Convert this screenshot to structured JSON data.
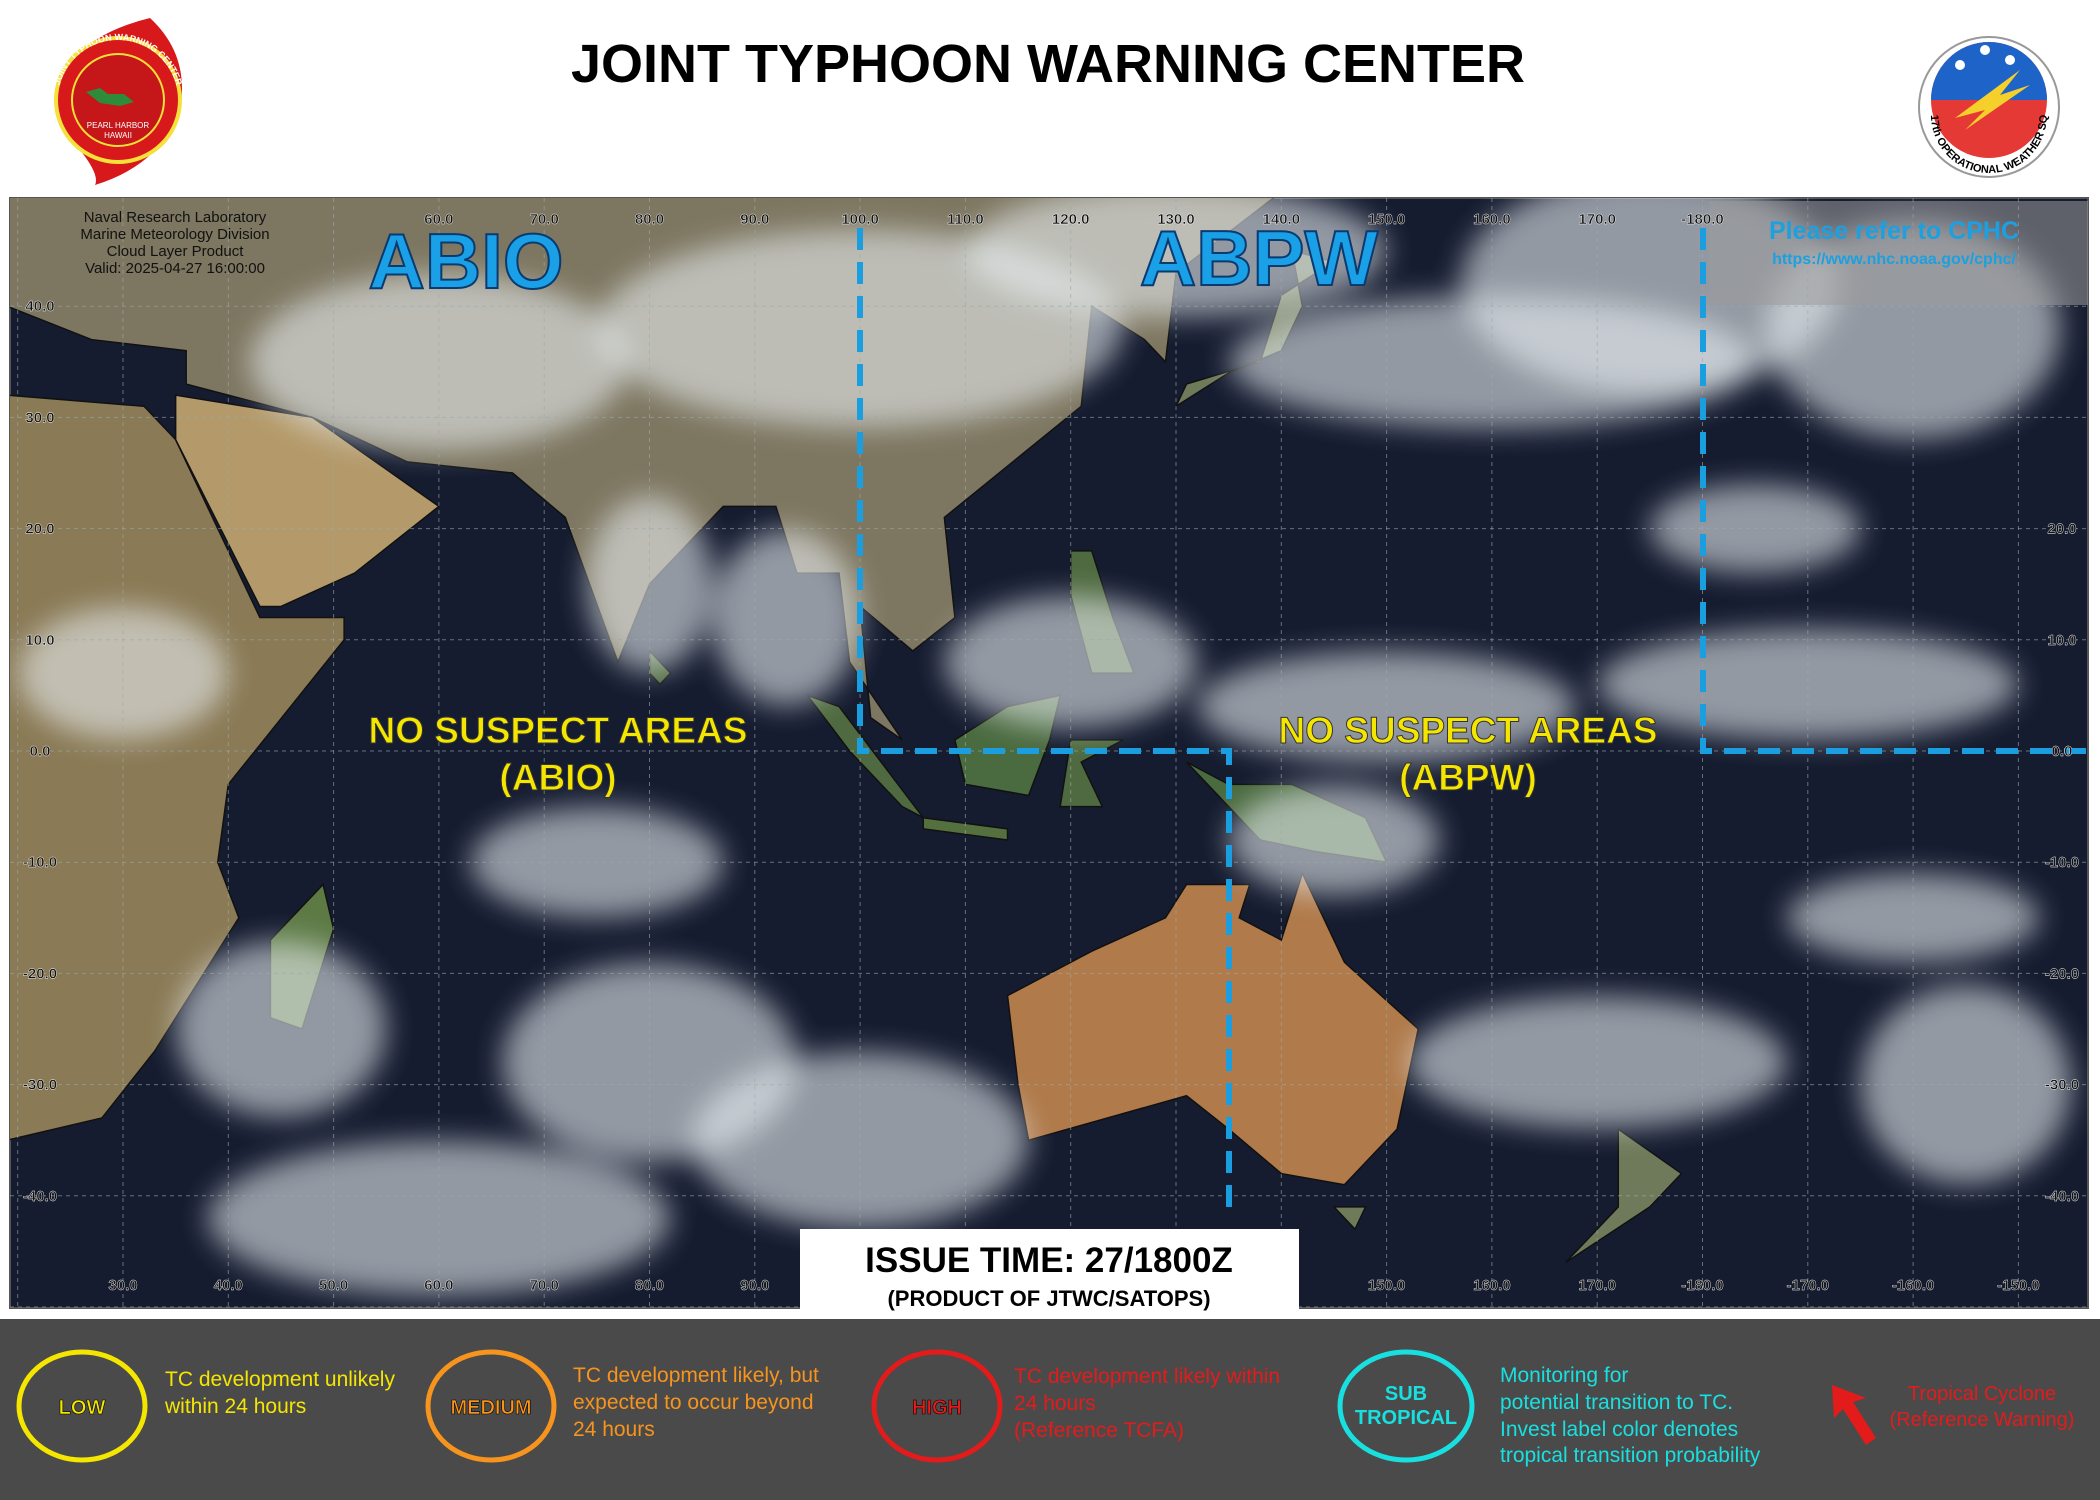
{
  "header": {
    "title": "JOINT TYPHOON WARNING CENTER",
    "left_logo": {
      "ring": "JOINT TYPHOON WARNING CENTER",
      "line1": "PEARL HARBOR",
      "line2": "HAWAII"
    },
    "right_logo": {
      "ring": "17th OPERATIONAL WEATHER SQ"
    }
  },
  "map": {
    "info": [
      "Naval Research Laboratory",
      "Marine Meteorology Division",
      "Cloud Layer Product",
      "Valid: 2025-04-27 16:00:00"
    ],
    "lon_labels_top": [
      "60.0",
      "70.0",
      "80.0",
      "90.0",
      "100.0",
      "110.0",
      "120.0",
      "130.0",
      "140.0",
      "150.0",
      "160.0",
      "170.0",
      "-180.0"
    ],
    "lon_labels_bottom": [
      "30.0",
      "40.0",
      "50.0",
      "60.0",
      "70.0",
      "80.0",
      "90.0",
      "150.0",
      "160.0",
      "170.0",
      "-180.0",
      "-170.0",
      "-160.0",
      "-150.0"
    ],
    "lat_labels_left": [
      "40.0",
      "30.0",
      "20.0",
      "10.0",
      "0.0",
      "-10.0",
      "-20.0",
      "-30.0",
      "-40.0"
    ],
    "lat_labels_right": [
      "20.0",
      "10.0",
      "0.0",
      "-10.0",
      "-20.0",
      "-30.0",
      "-40.0"
    ],
    "regions": {
      "abio": "ABIO",
      "abpw": "ABPW"
    },
    "cphc": {
      "title": "Please refer to CPHC",
      "url": "https://www.nhc.noaa.gov/cphc/"
    },
    "status": {
      "abio": [
        "NO SUSPECT AREAS",
        "(ABIO)"
      ],
      "abpw": [
        "NO SUSPECT AREAS",
        "(ABPW)"
      ]
    },
    "issue": {
      "time": "ISSUE TIME: 27/1800Z",
      "product": "(PRODUCT OF JTWC/SATOPS)"
    }
  },
  "legend": {
    "low": {
      "label": "LOW",
      "text": [
        "TC development  unlikely",
        "within 24 hours"
      ]
    },
    "medium": {
      "label": "MEDIUM",
      "text": [
        "TC development likely, but",
        "expected to occur beyond",
        "24 hours"
      ]
    },
    "high": {
      "label": "HIGH",
      "text": [
        "TC development  likely within",
        "24 hours",
        "(Reference TCFA)"
      ]
    },
    "sub": {
      "label": [
        "SUB",
        "TROPICAL"
      ],
      "text": [
        "Monitoring  for",
        "potential  transition to TC.",
        "Invest label color denotes",
        "tropical transition probability"
      ]
    },
    "cyclone": {
      "text": [
        "Tropical Cyclone",
        "(Reference Warning)"
      ]
    }
  }
}
